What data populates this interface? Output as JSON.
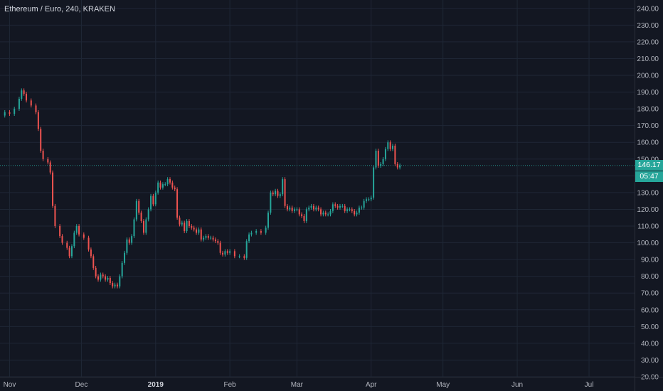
{
  "header": {
    "title": "Ethereum / Euro, 240, KRAKEN"
  },
  "price_axis": {
    "last_price_label": "146.17",
    "countdown_label": "05:47"
  },
  "colors": {
    "background": "#131722",
    "grid": "#1f2736",
    "axis_text": "#b2b5be",
    "up_candle": "#26a69a",
    "down_candle": "#ef5350",
    "price_line": "#26a69a",
    "label_bg": "#26a69a"
  },
  "chart_data": {
    "type": "line",
    "title": "Ethereum / Euro, 240, KRAKEN",
    "xlabel": "",
    "ylabel": "",
    "ylim": [
      20,
      245
    ],
    "y_ticks": [
      20,
      30,
      40,
      50,
      60,
      70,
      80,
      90,
      100,
      110,
      120,
      130,
      140,
      150,
      160,
      170,
      180,
      190,
      200,
      210,
      220,
      230,
      240
    ],
    "x_ticks": [
      {
        "label": "Nov",
        "date": "2018-11-01"
      },
      {
        "label": "Dec",
        "date": "2018-12-01"
      },
      {
        "label": "2019",
        "date": "2019-01-01",
        "bold": true
      },
      {
        "label": "Feb",
        "date": "2019-02-01"
      },
      {
        "label": "Mar",
        "date": "2019-03-01"
      },
      {
        "label": "Apr",
        "date": "2019-04-01"
      },
      {
        "label": "May",
        "date": "2019-05-01"
      },
      {
        "label": "Jun",
        "date": "2019-06-01"
      },
      {
        "label": "Jul",
        "date": "2019-07-01"
      }
    ],
    "x_range": [
      "2018-10-28",
      "2019-07-20"
    ],
    "last_price": 146.17,
    "grid": true,
    "series": [
      {
        "points": [
          [
            "2018-10-28",
            176
          ],
          [
            "2018-10-30",
            178
          ],
          [
            "2018-11-01",
            177
          ],
          [
            "2018-11-03",
            180
          ],
          [
            "2018-11-05",
            186
          ],
          [
            "2018-11-06",
            191
          ],
          [
            "2018-11-07",
            189
          ],
          [
            "2018-11-08",
            185
          ],
          [
            "2018-11-10",
            182
          ],
          [
            "2018-11-12",
            178
          ],
          [
            "2018-11-13",
            168
          ],
          [
            "2018-11-14",
            155
          ],
          [
            "2018-11-15",
            150
          ],
          [
            "2018-11-17",
            148
          ],
          [
            "2018-11-18",
            142
          ],
          [
            "2018-11-19",
            122
          ],
          [
            "2018-11-20",
            110
          ],
          [
            "2018-11-22",
            104
          ],
          [
            "2018-11-23",
            100
          ],
          [
            "2018-11-25",
            97
          ],
          [
            "2018-11-26",
            92
          ],
          [
            "2018-11-27",
            98
          ],
          [
            "2018-11-28",
            106
          ],
          [
            "2018-11-29",
            110
          ],
          [
            "2018-11-30",
            105
          ],
          [
            "2018-12-02",
            103
          ],
          [
            "2018-12-04",
            96
          ],
          [
            "2018-12-05",
            92
          ],
          [
            "2018-12-06",
            85
          ],
          [
            "2018-12-07",
            80
          ],
          [
            "2018-12-08",
            78
          ],
          [
            "2018-12-09",
            81
          ],
          [
            "2018-12-10",
            80
          ],
          [
            "2018-12-11",
            78
          ],
          [
            "2018-12-12",
            79
          ],
          [
            "2018-12-13",
            76
          ],
          [
            "2018-12-14",
            74
          ],
          [
            "2018-12-15",
            75
          ],
          [
            "2018-12-16",
            74
          ],
          [
            "2018-12-17",
            80
          ],
          [
            "2018-12-18",
            88
          ],
          [
            "2018-12-19",
            94
          ],
          [
            "2018-12-20",
            102
          ],
          [
            "2018-12-21",
            100
          ],
          [
            "2018-12-22",
            104
          ],
          [
            "2018-12-23",
            114
          ],
          [
            "2018-12-24",
            125
          ],
          [
            "2018-12-25",
            118
          ],
          [
            "2018-12-26",
            113
          ],
          [
            "2018-12-27",
            106
          ],
          [
            "2018-12-28",
            114
          ],
          [
            "2018-12-29",
            120
          ],
          [
            "2018-12-30",
            128
          ],
          [
            "2018-12-31",
            123
          ],
          [
            "2019-01-01",
            130
          ],
          [
            "2019-01-02",
            136
          ],
          [
            "2019-01-03",
            133
          ],
          [
            "2019-01-04",
            135
          ],
          [
            "2019-01-05",
            135
          ],
          [
            "2019-01-06",
            138
          ],
          [
            "2019-01-07",
            136
          ],
          [
            "2019-01-08",
            133
          ],
          [
            "2019-01-09",
            132
          ],
          [
            "2019-01-10",
            115
          ],
          [
            "2019-01-11",
            111
          ],
          [
            "2019-01-12",
            112
          ],
          [
            "2019-01-13",
            107
          ],
          [
            "2019-01-14",
            113
          ],
          [
            "2019-01-15",
            110
          ],
          [
            "2019-01-16",
            109
          ],
          [
            "2019-01-17",
            108
          ],
          [
            "2019-01-18",
            106
          ],
          [
            "2019-01-19",
            108
          ],
          [
            "2019-01-20",
            102
          ],
          [
            "2019-01-21",
            103
          ],
          [
            "2019-01-22",
            104
          ],
          [
            "2019-01-23",
            103
          ],
          [
            "2019-01-24",
            103
          ],
          [
            "2019-01-25",
            102
          ],
          [
            "2019-01-26",
            101
          ],
          [
            "2019-01-27",
            100
          ],
          [
            "2019-01-28",
            94
          ],
          [
            "2019-01-29",
            93
          ],
          [
            "2019-01-30",
            95
          ],
          [
            "2019-01-31",
            94
          ],
          [
            "2019-02-01",
            95
          ],
          [
            "2019-02-03",
            92
          ],
          [
            "2019-02-05",
            92
          ],
          [
            "2019-02-07",
            91
          ],
          [
            "2019-02-08",
            101
          ],
          [
            "2019-02-09",
            105
          ],
          [
            "2019-02-10",
            106
          ],
          [
            "2019-02-12",
            107
          ],
          [
            "2019-02-14",
            106
          ],
          [
            "2019-02-16",
            109
          ],
          [
            "2019-02-17",
            118
          ],
          [
            "2019-02-18",
            130
          ],
          [
            "2019-02-19",
            129
          ],
          [
            "2019-02-20",
            131
          ],
          [
            "2019-02-21",
            128
          ],
          [
            "2019-02-22",
            129
          ],
          [
            "2019-02-23",
            138
          ],
          [
            "2019-02-24",
            122
          ],
          [
            "2019-02-25",
            120
          ],
          [
            "2019-02-26",
            121
          ],
          [
            "2019-02-27",
            119
          ],
          [
            "2019-02-28",
            120
          ],
          [
            "2019-03-01",
            120
          ],
          [
            "2019-03-02",
            117
          ],
          [
            "2019-03-03",
            116
          ],
          [
            "2019-03-04",
            113
          ],
          [
            "2019-03-05",
            120
          ],
          [
            "2019-03-06",
            121
          ],
          [
            "2019-03-07",
            122
          ],
          [
            "2019-03-08",
            120
          ],
          [
            "2019-03-09",
            121
          ],
          [
            "2019-03-10",
            120
          ],
          [
            "2019-03-11",
            117
          ],
          [
            "2019-03-12",
            118
          ],
          [
            "2019-03-13",
            117
          ],
          [
            "2019-03-14",
            117
          ],
          [
            "2019-03-15",
            119
          ],
          [
            "2019-03-16",
            123
          ],
          [
            "2019-03-17",
            122
          ],
          [
            "2019-03-18",
            121
          ],
          [
            "2019-03-19",
            122
          ],
          [
            "2019-03-20",
            122
          ],
          [
            "2019-03-21",
            119
          ],
          [
            "2019-03-22",
            120
          ],
          [
            "2019-03-23",
            120
          ],
          [
            "2019-03-24",
            119
          ],
          [
            "2019-03-25",
            117
          ],
          [
            "2019-03-26",
            118
          ],
          [
            "2019-03-27",
            121
          ],
          [
            "2019-03-28",
            121
          ],
          [
            "2019-03-29",
            125
          ],
          [
            "2019-03-30",
            126
          ],
          [
            "2019-03-31",
            126
          ],
          [
            "2019-04-01",
            127
          ],
          [
            "2019-04-02",
            145
          ],
          [
            "2019-04-03",
            155
          ],
          [
            "2019-04-04",
            146
          ],
          [
            "2019-04-05",
            147
          ],
          [
            "2019-04-06",
            150
          ],
          [
            "2019-04-07",
            156
          ],
          [
            "2019-04-08",
            160
          ],
          [
            "2019-04-09",
            156
          ],
          [
            "2019-04-10",
            158
          ],
          [
            "2019-04-11",
            147
          ],
          [
            "2019-04-12",
            145
          ],
          [
            "2019-04-13",
            146.17
          ]
        ]
      }
    ]
  }
}
